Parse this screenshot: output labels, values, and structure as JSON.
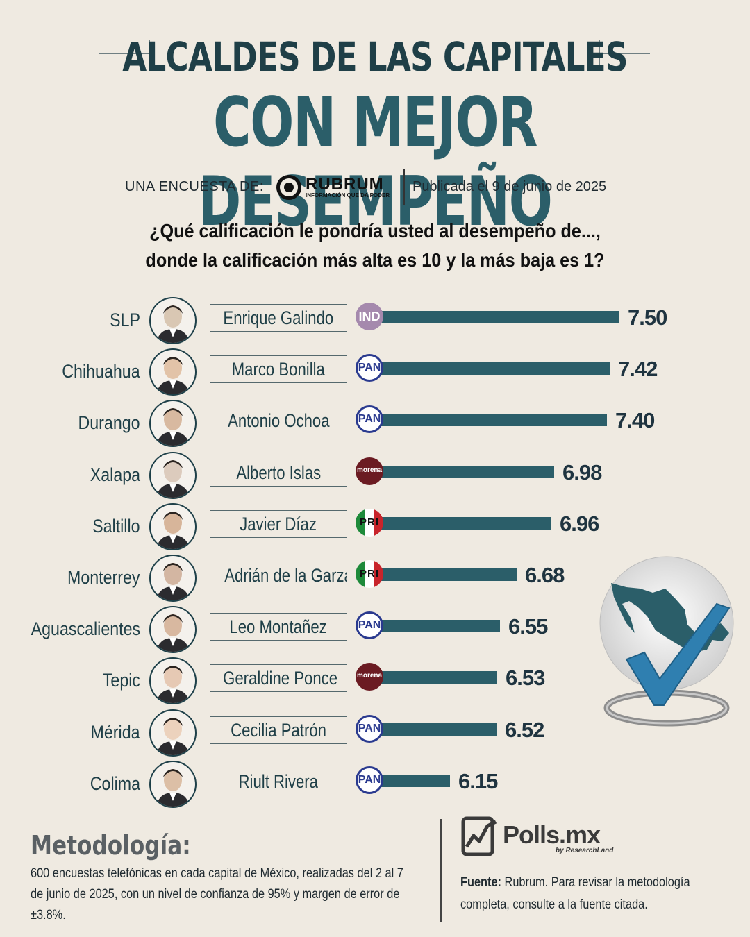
{
  "header": {
    "title_line1": "ALCALDES DE LAS CAPITALES",
    "title_line2": "CON MEJOR DESEMPEÑO",
    "survey_label": "UNA ENCUESTA DE:",
    "pollster_name": "RUBRUM",
    "pollster_tagline": "INFORMACIÓN QUE DA PODER",
    "published": "Publicada el 9 de junio de 2025"
  },
  "question": {
    "line1": "¿Qué calificación le pondría usted al desempeño de...,",
    "line2": "donde la calificación más alta es 10 y la más baja es 1?"
  },
  "chart_data": {
    "type": "bar",
    "orientation": "horizontal",
    "categories": [
      "SLP",
      "Chihuahua",
      "Durango",
      "Xalapa",
      "Saltillo",
      "Monterrey",
      "Aguascalientes",
      "Tepic",
      "Mérida",
      "Colima"
    ],
    "mayors": [
      "Enrique Galindo",
      "Marco Bonilla",
      "Antonio Ochoa",
      "Alberto Islas",
      "Javier Díaz",
      "Adrián de la Garza",
      "Leo Montañez",
      "Geraldine Ponce",
      "Cecilia Patrón",
      "Riult Rivera"
    ],
    "parties": [
      "IND",
      "PAN",
      "PAN",
      "morena",
      "PRI",
      "PRI",
      "PAN",
      "morena",
      "PAN",
      "PAN"
    ],
    "values": [
      7.5,
      7.42,
      7.4,
      6.98,
      6.96,
      6.68,
      6.55,
      6.53,
      6.52,
      6.15
    ],
    "value_labels": [
      "7.50",
      "7.42",
      "7.40",
      "6.98",
      "6.96",
      "6.68",
      "6.55",
      "6.53",
      "6.52",
      "6.15"
    ],
    "bar_color": "#2b5e69",
    "title": "ALCALDES DE LAS CAPITALES CON MEJOR DESEMPEÑO"
  },
  "party_labels": {
    "IND": "IND",
    "PAN": "PAN",
    "PRI": "PRI",
    "morena": "morena"
  },
  "footer": {
    "methodology_title": "Metodología:",
    "methodology_text": "600 encuestas telefónicas en cada capital de México, realizadas del 2 al 7 de junio de 2025, con un nivel de confianza de 95% y margen de error de ±3.8%.",
    "brand": "Polls.mx",
    "brand_sub": "by ResearchLand",
    "source_label": "Fuente:",
    "source_text": "Rubrum. Para revisar la metodología completa, consulte a la fuente citada."
  },
  "colors": {
    "background": "#efeae1",
    "title_dark": "#1f3f47",
    "title_teal": "#2b5e69",
    "bar": "#2b5e69",
    "pan": "#2a3a8f",
    "morena": "#6b1b22",
    "ind": "#a589ad"
  }
}
